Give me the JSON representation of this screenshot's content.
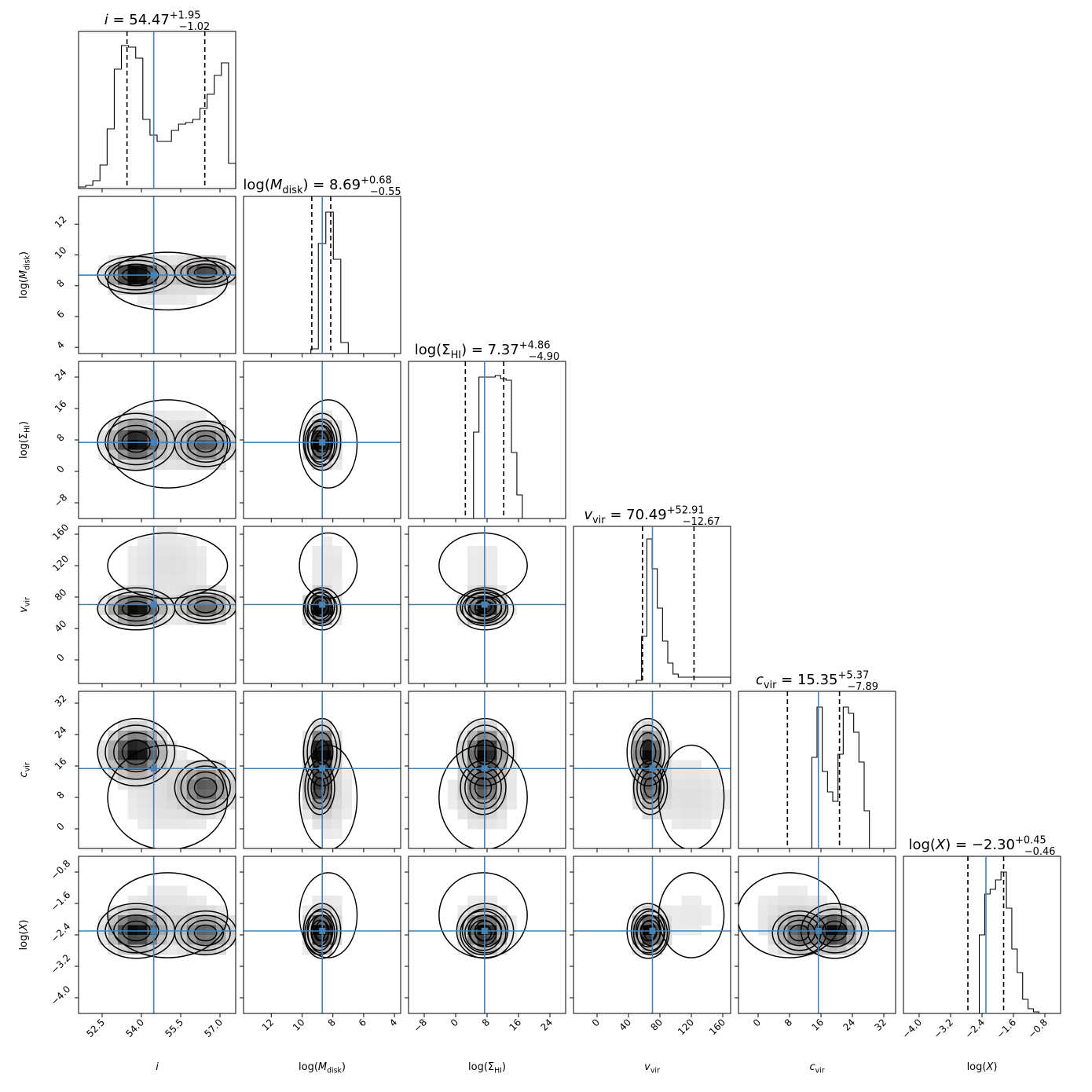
{
  "chart_data": {
    "type": "corner",
    "parameters": [
      {
        "key": "i",
        "axis_label": [
          "i"
        ],
        "title": [
          "i",
          " = 54.47",
          "+1.95",
          "−1.02"
        ],
        "range": [
          51.6,
          57.6
        ],
        "ticks": [
          52.5,
          54.0,
          55.5,
          57.0
        ],
        "tick_labels": [
          "52.5",
          "54.0",
          "55.5",
          "57.0"
        ],
        "reversed": false,
        "median": 54.47,
        "quantiles": [
          53.45,
          56.42
        ],
        "hist": [
          0.01,
          0.02,
          0.05,
          0.15,
          0.38,
          0.76,
          0.91,
          0.9,
          0.83,
          0.44,
          0.34,
          0.3,
          0.3,
          0.37,
          0.41,
          0.42,
          0.44,
          0.51,
          0.6,
          0.72,
          0.8,
          0.16
        ]
      },
      {
        "key": "logMdisk",
        "axis_label": [
          "log(",
          "M",
          "disk",
          ")"
        ],
        "title": [
          "log(",
          "M",
          "disk",
          ") = 8.69",
          "+0.68",
          "−0.55"
        ],
        "range": [
          3.6,
          13.8
        ],
        "ticks": [
          4,
          6,
          8,
          10,
          12
        ],
        "tick_labels": [
          "4",
          "6",
          "8",
          "10",
          "12"
        ],
        "reversed": true,
        "median": 8.69,
        "quantiles": [
          8.14,
          9.37
        ],
        "hist": [
          0,
          0,
          0,
          0,
          0,
          0,
          0,
          0,
          0,
          0.03,
          0.7,
          0.9,
          0.6,
          0.07,
          0,
          0,
          0,
          0,
          0,
          0,
          0
        ]
      },
      {
        "key": "logSigmaHI",
        "axis_label": [
          "log(Σ",
          "HI",
          ")"
        ],
        "title": [
          "log(Σ",
          "HI",
          ") = 7.37",
          "+4.86",
          "−4.90"
        ],
        "range": [
          -12,
          28
        ],
        "ticks": [
          -8,
          0,
          8,
          16,
          24
        ],
        "tick_labels": [
          "−8",
          "0",
          "8",
          "16",
          "24"
        ],
        "reversed": false,
        "median": 7.37,
        "quantiles": [
          2.47,
          12.23
        ],
        "hist": [
          0,
          0,
          0,
          0,
          0,
          0,
          0,
          0,
          0,
          0,
          0,
          0,
          0.55,
          0.9,
          0.9,
          0.9,
          0.91,
          0.89,
          0.88,
          0.42,
          0.15,
          0,
          0,
          0,
          0,
          0,
          0,
          0,
          0
        ]
      },
      {
        "key": "vvir",
        "axis_label": [
          "v",
          "vir"
        ],
        "title": [
          "v",
          "vir",
          " = 70.49",
          "+52.91",
          "−12.67"
        ],
        "range": [
          -30,
          170
        ],
        "ticks": [
          0,
          40,
          80,
          120,
          160
        ],
        "tick_labels": [
          "0",
          "40",
          "80",
          "120",
          "160"
        ],
        "reversed": false,
        "median": 70.49,
        "quantiles": [
          57.82,
          123.4
        ],
        "hist": [
          0,
          0,
          0,
          0,
          0,
          0,
          0,
          0,
          0,
          0,
          0,
          0,
          0.02,
          0.3,
          0.92,
          0.73,
          0.48,
          0.27,
          0.13,
          0.06,
          0.04,
          0.04,
          0.04,
          0.04,
          0.04,
          0.04,
          0.04,
          0.04,
          0.04,
          0.04
        ]
      },
      {
        "key": "cvir",
        "axis_label": [
          "c",
          "vir"
        ],
        "title": [
          "c",
          "vir",
          " = 15.35",
          "+5.37",
          "−7.89"
        ],
        "range": [
          -5,
          35
        ],
        "ticks": [
          0,
          8,
          16,
          24,
          32
        ],
        "tick_labels": [
          "0",
          "8",
          "16",
          "24",
          "32"
        ],
        "reversed": false,
        "median": 15.35,
        "quantiles": [
          7.46,
          20.72
        ],
        "hist": [
          0,
          0,
          0,
          0,
          0,
          0,
          0,
          0,
          0,
          0,
          0,
          0,
          0,
          0,
          0.58,
          0.9,
          0.49,
          0.36,
          0.3,
          0.6,
          0.9,
          0.86,
          0.74,
          0.55,
          0.24,
          0,
          0,
          0,
          0,
          0
        ]
      },
      {
        "key": "logX",
        "axis_label": [
          "log(",
          "X",
          ")"
        ],
        "title": [
          "log(",
          "X",
          ") = −2.30",
          "+0.45",
          "−0.46"
        ],
        "range": [
          -4.4,
          -0.4
        ],
        "ticks": [
          -4.0,
          -3.2,
          -2.4,
          -1.6,
          -0.8
        ],
        "tick_labels": [
          "−4.0",
          "−3.2",
          "−2.4",
          "−1.6",
          "−0.8"
        ],
        "reversed": false,
        "median": -2.3,
        "quantiles": [
          -2.76,
          -1.85
        ],
        "hist": [
          0,
          0,
          0,
          0,
          0,
          0,
          0,
          0,
          0,
          0,
          0,
          0,
          0,
          0,
          0.5,
          0.76,
          0.79,
          0.85,
          0.9,
          0.67,
          0.41,
          0.26,
          0.09,
          0.03,
          0.01,
          0,
          0,
          0,
          0
        ]
      }
    ],
    "joint_components": [
      {
        "i": 53.8,
        "logMdisk": 8.7,
        "logSigmaHI": 7.5,
        "vvir": 65,
        "cvir": 19.5,
        "logX": -2.3,
        "weight": 0.65
      },
      {
        "i": 56.45,
        "logMdisk": 8.85,
        "logSigmaHI": 7.0,
        "vvir": 68,
        "cvir": 10.5,
        "logX": -2.35,
        "weight": 0.38
      },
      {
        "i": 55.0,
        "logMdisk": 8.3,
        "logSigmaHI": 7.0,
        "vvir": 120,
        "cvir": 8.0,
        "logX": -1.9,
        "weight": 0.05
      }
    ],
    "grid": false,
    "median_line_color": "#4682b4",
    "quantile_line_style": "dashed-black",
    "contour_color": "#000000"
  }
}
